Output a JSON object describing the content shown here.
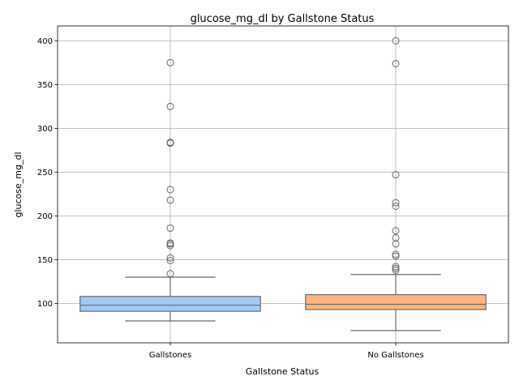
{
  "chart_data": {
    "type": "box",
    "title": "glucose_mg_dl by Gallstone Status",
    "xlabel": "Gallstone Status",
    "ylabel": "glucose_mg_dl",
    "ylim": [
      55,
      417
    ],
    "yticks": [
      100,
      150,
      200,
      250,
      300,
      350,
      400
    ],
    "grid": true,
    "categories": [
      "Gallstones",
      "No Gallstones"
    ],
    "series": [
      {
        "category": "Gallstones",
        "color": "#a1c9f4",
        "whisker_low": 80,
        "q1": 91,
        "median": 98,
        "q3": 108,
        "whisker_high": 130,
        "outliers": [
          134,
          149,
          152,
          166,
          168,
          169,
          186,
          218,
          230,
          283,
          284,
          325,
          375
        ]
      },
      {
        "category": "No Gallstones",
        "color": "#ffb482",
        "whisker_low": 69,
        "q1": 93,
        "median": 99,
        "q3": 110,
        "whisker_high": 133,
        "outliers": [
          138,
          140,
          142,
          154,
          156,
          168,
          175,
          183,
          211,
          215,
          247,
          374,
          400
        ]
      }
    ]
  }
}
